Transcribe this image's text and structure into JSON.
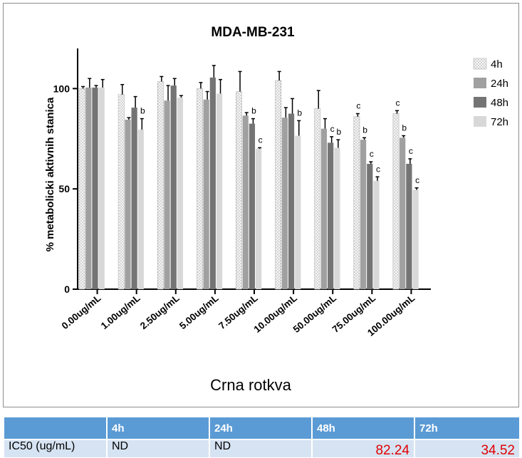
{
  "chart_data": {
    "type": "bar",
    "title": "MDA-MB-231",
    "xlabel": "Crna rotkva",
    "ylabel": "% metabolicki aktivnih stanica",
    "ylim": [
      0,
      120
    ],
    "yticks": [
      0,
      50,
      100
    ],
    "grid": false,
    "legend_position": "right",
    "categories": [
      "0.00ug/mL",
      "1.00ug/mL",
      "2.50ug/mL",
      "5.00ug/mL",
      "7.50ug/mL",
      "10.00ug/mL",
      "50.00ug/mL",
      "75.00ug/mL",
      "100.00ug/mL"
    ],
    "series": [
      {
        "name": "4h",
        "color": "#f2f2f2",
        "pattern": "dots",
        "values": [
          100,
          97,
          103.5,
          100,
          98.5,
          104,
          90,
          86,
          87.5
        ],
        "errors": [
          1,
          5,
          2.5,
          3,
          10,
          4.5,
          9,
          1.5,
          1.5
        ],
        "labels": [
          "",
          "",
          "",
          "",
          "",
          "",
          "",
          "c",
          "c"
        ]
      },
      {
        "name": "24h",
        "color": "#a0a0a0",
        "values": [
          100.5,
          84.5,
          94,
          94.5,
          86.5,
          85.5,
          80,
          74.5,
          75.5
        ],
        "errors": [
          4.5,
          1,
          7.5,
          4,
          1.5,
          5,
          5,
          1,
          1
        ],
        "labels": [
          "",
          "",
          "",
          "",
          "",
          "",
          "",
          "b",
          "b"
        ]
      },
      {
        "name": "48h",
        "color": "#747474",
        "values": [
          100.5,
          90.5,
          101.5,
          105.5,
          82.5,
          87.5,
          73,
          62.5,
          62.5
        ],
        "errors": [
          1,
          5.5,
          3.5,
          6,
          2.5,
          7.5,
          3,
          1,
          2.5
        ],
        "labels": [
          "",
          "",
          "",
          "",
          "b",
          "",
          "c",
          "c",
          "c"
        ]
      },
      {
        "name": "72h",
        "color": "#d8d8d8",
        "values": [
          100.5,
          79.5,
          95.5,
          97.5,
          70,
          76.5,
          70.5,
          54,
          49.5
        ],
        "errors": [
          4,
          5.5,
          1,
          7,
          0.5,
          7.5,
          4,
          2,
          1
        ],
        "labels": [
          "",
          "b",
          "",
          "",
          "c",
          "b",
          "b",
          "c",
          "c"
        ]
      }
    ]
  },
  "table": {
    "headers": [
      "",
      "4h",
      "24h",
      "48h",
      "72h"
    ],
    "row": {
      "label": "IC50 (ug/mL)",
      "v4h": "ND",
      "v24h": "ND",
      "v48h": "82.24",
      "v72h": "34.52"
    }
  }
}
